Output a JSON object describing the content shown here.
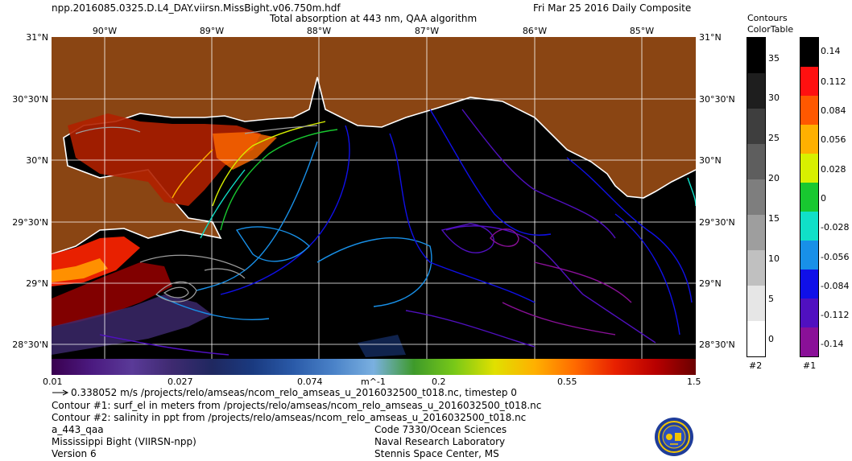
{
  "header": {
    "filename": "npp.2016085.0325.D.L4_DAY.viirsn.MissBight.v06.750m.hdf",
    "title": "Total absorption at 443 nm, QAA algorithm",
    "date": "Fri Mar 25 2016 Daily Composite"
  },
  "axes": {
    "lon_labels": [
      "90°W",
      "89°W",
      "88°W",
      "87°W",
      "86°W",
      "85°W"
    ],
    "lat_labels": [
      "31°N",
      "30°30'N",
      "30°N",
      "29°30'N",
      "29°N",
      "28°30'N"
    ]
  },
  "colorbar": {
    "ticks": [
      "0.01",
      "0.027",
      "0.074",
      "m^-1",
      "0.2",
      "0.55",
      "1.5"
    ],
    "colors": [
      "#3a0050",
      "#4b1a80",
      "#5a3a98",
      "#3e2a70",
      "#1f2860",
      "#1a3a80",
      "#2a5aa8",
      "#4a82c8",
      "#7ab0e0",
      "#3e9a2a",
      "#78c818",
      "#e0e000",
      "#ffb000",
      "#ff6a00",
      "#e82000",
      "#b80000",
      "#6a0000"
    ]
  },
  "contours_legend": {
    "title_line1": "Contours",
    "title_line2": "ColorTable",
    "values": [
      "35",
      "30",
      "25",
      "20",
      "15",
      "10",
      "5",
      "0"
    ],
    "id": "#2",
    "colors": [
      "#000000",
      "#1e1e1e",
      "#3e3e3e",
      "#5e5e5e",
      "#7e7e7e",
      "#9e9e9e",
      "#c0c0c0",
      "#e6e6e6",
      "#ffffff"
    ]
  },
  "color_legend": {
    "values": [
      "0.14",
      "0.112",
      "0.084",
      "0.056",
      "0.028",
      "0",
      "-0.028",
      "-0.056",
      "-0.084",
      "-0.112",
      "-0.14"
    ],
    "id": "#1",
    "colors": [
      "#000000",
      "#ff1010",
      "#ff5800",
      "#ffb000",
      "#d8f000",
      "#18c830",
      "#10e0c8",
      "#1890e8",
      "#1010e8",
      "#5010c0",
      "#8a1098"
    ]
  },
  "footer": {
    "vector_line": "0.338052 m/s /projects/relo/amseas/ncom_relo_amseas_u_2016032500_t018.nc, timestep 0",
    "contour1": "Contour #1: surf_el in meters from /projects/relo/amseas/ncom_relo_amseas_u_2016032500_t018.nc",
    "contour2": "Contour #2: salinity in ppt from /projects/relo/amseas/ncom_relo_amseas_u_2016032500_t018.nc",
    "product": "a_443_qaa",
    "region": "Mississippi Bight (VIIRSN-npp)",
    "version": "Version 6",
    "org1": "Code 7330/Ocean Sciences",
    "org2": "Naval Research Laboratory",
    "org3": "Stennis Space Center, MS"
  },
  "colors": {
    "land": "#8a4513",
    "ocean": "#000000",
    "grid": "#ffffff"
  }
}
